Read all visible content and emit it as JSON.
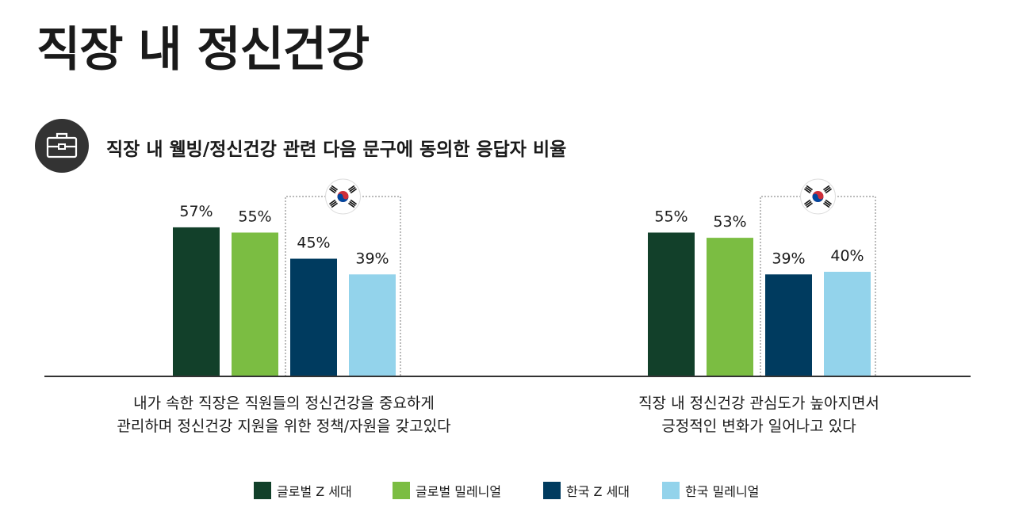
{
  "page": {
    "title": "직장 내 정신건강"
  },
  "header": {
    "subtitle": "직장 내 웰빙/정신건강 관련 다음 문구에 동의한 응답자 비율",
    "icon": "briefcase-icon"
  },
  "colors": {
    "global_genz": "#12402a",
    "global_millennial": "#7bbd42",
    "korea_genz": "#003b5f",
    "korea_millennial": "#93d3eb",
    "baseline": "#333333",
    "highlight_border": "#777777"
  },
  "chart_data": {
    "type": "bar",
    "title": "직장 내 웰빙/정신건강 관련 다음 문구에 동의한 응답자 비율",
    "categories": [
      [
        "내가 속한 직장은 직원들의 정신건강을 중요하게",
        "관리하며 정신건강 지원을 위한 정책/자원을 갖고있다"
      ],
      [
        "직장 내 정신건강 관심도가 높아지면서",
        "긍정적인 변화가 일어나고 있다"
      ]
    ],
    "series": [
      {
        "name": "글로벌 Z 세대",
        "values": [
          57,
          55
        ],
        "color": "#12402a"
      },
      {
        "name": "글로벌 밀레니얼",
        "values": [
          55,
          53
        ],
        "color": "#7bbd42"
      },
      {
        "name": "한국 Z 세대",
        "values": [
          45,
          39
        ],
        "color": "#003b5f"
      },
      {
        "name": "한국 밀레니얼",
        "values": [
          39,
          40
        ],
        "color": "#93d3eb"
      }
    ],
    "value_format": "{v}%",
    "ylim": [
      0,
      100
    ],
    "grid": false,
    "legend_placement": "bottom-center",
    "highlight": {
      "series": [
        "한국 Z 세대",
        "한국 밀레니얼"
      ],
      "icon": "korea-flag-icon"
    }
  }
}
